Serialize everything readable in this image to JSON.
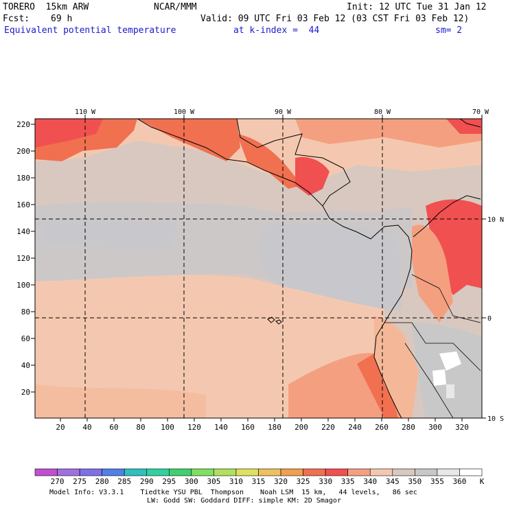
{
  "header": {
    "model": "TORERO  15km ARW",
    "org": "NCAR/MMM",
    "init": "Init: 12 UTC Tue 31 Jan 12",
    "fcst_label": "Fcst:",
    "fcst_value": "69 h",
    "valid": "Valid: 09 UTC Fri 03 Feb 12 (03 CST Fri 03 Feb 12)",
    "field": "Equivalent potential temperature",
    "level": "at k-index =  44",
    "smoothing": "sm= 2"
  },
  "map": {
    "lon_labels": [
      "110 W",
      "100 W",
      "90 W",
      "80 W",
      "70 W"
    ],
    "lat_labels": [
      "10 N",
      "0",
      "10 S"
    ],
    "y_ticks": [
      "220",
      "200",
      "180",
      "160",
      "140",
      "120",
      "100",
      "80",
      "60",
      "40",
      "20"
    ],
    "x_ticks": [
      "20",
      "40",
      "60",
      "80",
      "100",
      "120",
      "140",
      "160",
      "180",
      "200",
      "220",
      "240",
      "260",
      "280",
      "300",
      "320"
    ]
  },
  "colorbar": {
    "labels": [
      "270",
      "275",
      "280",
      "285",
      "290",
      "295",
      "300",
      "305",
      "310",
      "315",
      "320",
      "325",
      "330",
      "335",
      "340",
      "345",
      "350",
      "355",
      "360"
    ],
    "unit": "K",
    "colors": [
      "#c050d0",
      "#a070e0",
      "#8070e8",
      "#5080e8",
      "#30c0c0",
      "#30d0a0",
      "#40d070",
      "#80e060",
      "#b0e060",
      "#e0e060",
      "#f0c060",
      "#f0a050",
      "#f07050",
      "#f05050",
      "#f4a080",
      "#f4c8b0",
      "#d8c8c0",
      "#c8c8c8",
      "#e8e8e8",
      "#ffffff"
    ]
  },
  "footer": {
    "line1": "Model Info: V3.3.1    Tiedtke YSU PBL  Thompson    Noah LSM  15 km,   44 levels,   86 sec",
    "line2": "LW: Godd SW: Goddard DIFF: simple KM: 2D Smagor"
  }
}
